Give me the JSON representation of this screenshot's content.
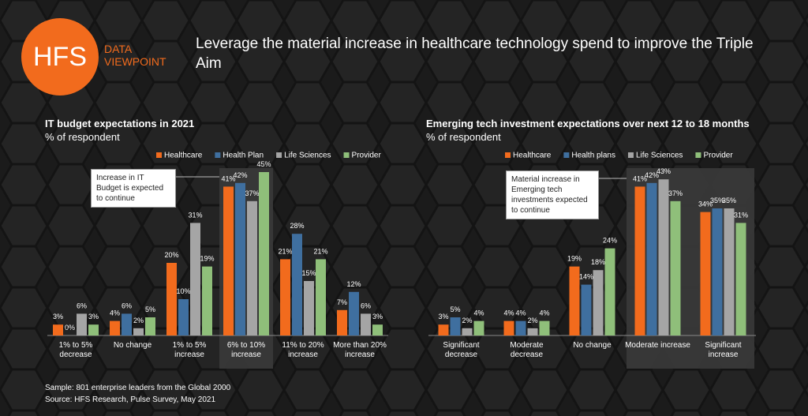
{
  "header": {
    "logo": "HFS",
    "logo_caption": "DATA VIEWPOINT",
    "title": "Leverage the material increase in healthcare technology spend to improve the Triple Aim"
  },
  "footer": {
    "sample": "Sample: 801 enterprise leaders from the Global 2000",
    "source": "Source: HFS Research, Pulse Survey, May 2021"
  },
  "chart_data": [
    {
      "type": "bar",
      "title": "IT budget expectations in 2021",
      "subtitle": "% of respondent",
      "annotation": "Increase in IT Budget is expected to continue",
      "categories": [
        "1% to 5% decrease",
        "No change",
        "1% to 5% increase",
        "6% to 10% increase",
        "11% to 20% increase",
        "More than 20% increase"
      ],
      "series": [
        {
          "name": "Healthcare",
          "color": "#f26b1d",
          "values": [
            3,
            4,
            20,
            41,
            21,
            7
          ],
          "value_labels": [
            "3%",
            "4%",
            "20%",
            "41%",
            "21%",
            "7%"
          ]
        },
        {
          "name": "Health Plan",
          "color": "#3f6f9f",
          "values": [
            0,
            6,
            10,
            42,
            28,
            12
          ],
          "value_labels": [
            "0%",
            "6%",
            "10%",
            "42%",
            "28%",
            "12%"
          ]
        },
        {
          "name": "Life Sciences",
          "color": "#a5a5a5",
          "values": [
            6,
            2,
            31,
            37,
            15,
            6
          ],
          "value_labels": [
            "6%",
            "2%",
            "31%",
            "37%",
            "15%",
            "6%"
          ]
        },
        {
          "name": "Provider",
          "color": "#8fbf7a",
          "values": [
            3,
            5,
            19,
            45,
            21,
            3
          ],
          "value_labels": [
            "3%",
            "5%",
            "19%",
            "45%",
            "21%",
            "3%"
          ]
        }
      ]
    },
    {
      "type": "bar",
      "title": "Emerging tech investment expectations over next 12 to 18 months",
      "subtitle": "% of respondent",
      "annotation": "Material increase in Emerging tech investments expected to continue",
      "categories": [
        "Significant decrease",
        "Moderate decrease",
        "No change",
        "Moderate increase",
        "Significant increase"
      ],
      "series": [
        {
          "name": "Healthcare",
          "color": "#f26b1d",
          "values": [
            3,
            4,
            19,
            41,
            34
          ],
          "value_labels": [
            "3%",
            "4%",
            "19%",
            "41%",
            "34%"
          ]
        },
        {
          "name": "Health plans",
          "color": "#3f6f9f",
          "values": [
            5,
            4,
            14,
            42,
            35
          ],
          "value_labels": [
            "5%",
            "4%",
            "14%",
            "42%",
            "35%"
          ]
        },
        {
          "name": "Life Sciences",
          "color": "#a5a5a5",
          "values": [
            2,
            2,
            18,
            43,
            35
          ],
          "value_labels": [
            "2%",
            "2%",
            "18%",
            "43%",
            "35%"
          ]
        },
        {
          "name": "Provider",
          "color": "#8fbf7a",
          "values": [
            4,
            4,
            24,
            37,
            31
          ],
          "value_labels": [
            "4%",
            "4%",
            "24%",
            "37%",
            "31%"
          ]
        }
      ]
    }
  ]
}
